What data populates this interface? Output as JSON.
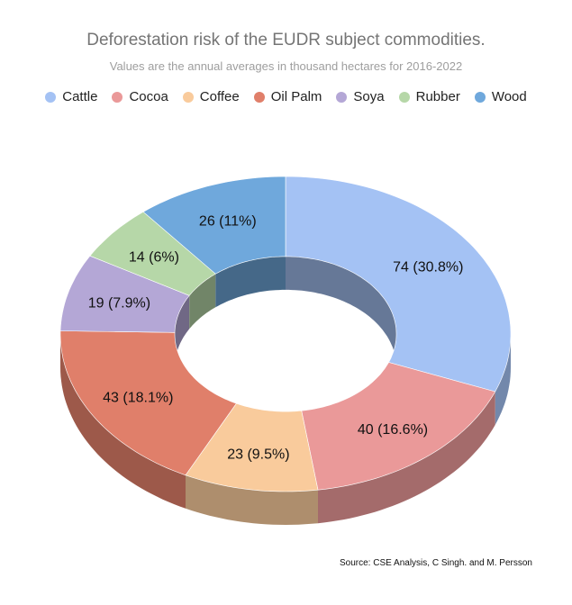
{
  "chart_data": {
    "type": "pie",
    "title": "Deforestation risk of the EUDR subject commodities.",
    "subtitle": "Values are the annual averages in thousand hectares for 2016-2022",
    "legend_position": "top",
    "categories": [
      "Cattle",
      "Cocoa",
      "Coffee",
      "Oil Palm",
      "Soya",
      "Rubber",
      "Wood"
    ],
    "values": [
      74,
      40,
      23,
      43,
      19,
      14,
      26
    ],
    "percentages": [
      "30.8%",
      "16.6%",
      "9.5%",
      "18.1%",
      "7.9%",
      "6%",
      "11%"
    ],
    "data_labels": [
      "74 (30.8%)",
      "40 (16.6%)",
      "23 (9.5%)",
      "43 (18.1%)",
      "19 (7.9%)",
      "14 (6%)",
      "26 (11%)"
    ],
    "colors": [
      "#a4c2f4",
      "#ea9999",
      "#f9cb9c",
      "#e07f6a",
      "#b4a7d6",
      "#b6d7a8",
      "#6fa8dc"
    ],
    "donut": true,
    "style_3d": true
  },
  "source": "Source: CSE Analysis, C Singh. and M. Persson"
}
